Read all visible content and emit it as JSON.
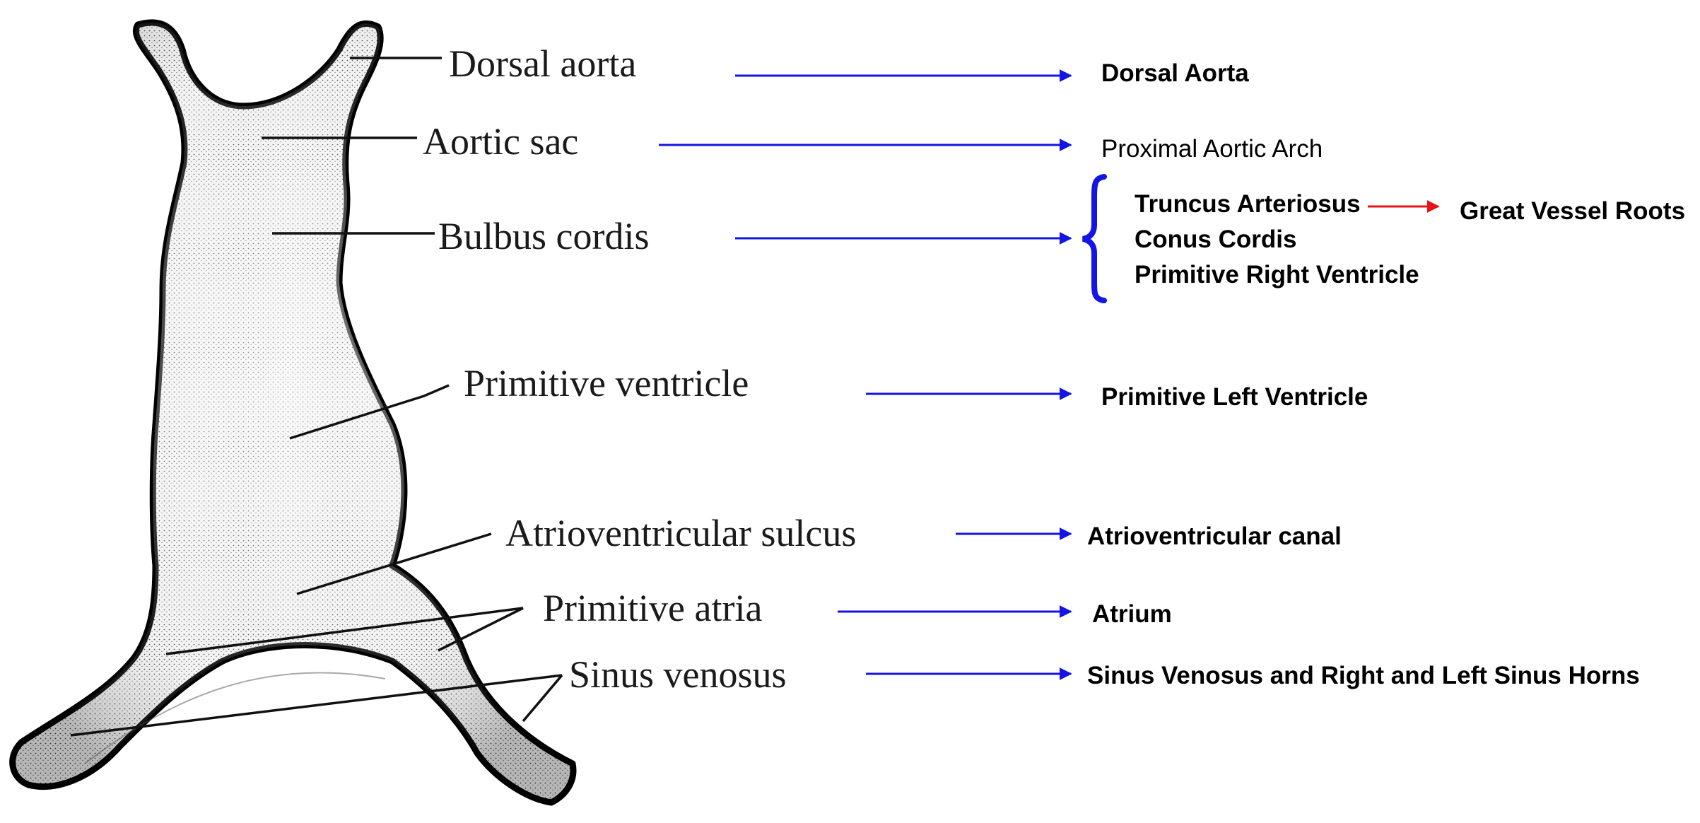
{
  "diagram": {
    "left_labels": {
      "dorsal_aorta": "Dorsal aorta",
      "aortic_sac": "Aortic sac",
      "bulbus_cordis": "Bulbus cordis",
      "primitive_ventricle": "Primitive ventricle",
      "av_sulcus": "Atrioventricular sulcus",
      "primitive_atria": "Primitive atria",
      "sinus_venosus": "Sinus venosus"
    },
    "right_labels": {
      "dorsal_aorta": "Dorsal Aorta",
      "proximal_aortic_arch": "Proximal Aortic Arch",
      "truncus_arteriosus": "Truncus Arteriosus",
      "conus_cordis": "Conus Cordis",
      "primitive_right_ventricle": "Primitive Right Ventricle",
      "great_vessel_roots": "Great Vessel Roots",
      "primitive_left_ventricle": "Primitive Left Ventricle",
      "av_canal": "Atrioventricular canal",
      "atrium": "Atrium",
      "sinus_horns": "Sinus Venosus and Right and Left Sinus Horns"
    }
  },
  "colors": {
    "arrow_blue": "#1414e6",
    "arrow_red": "#e61414",
    "outline": "#000000"
  }
}
